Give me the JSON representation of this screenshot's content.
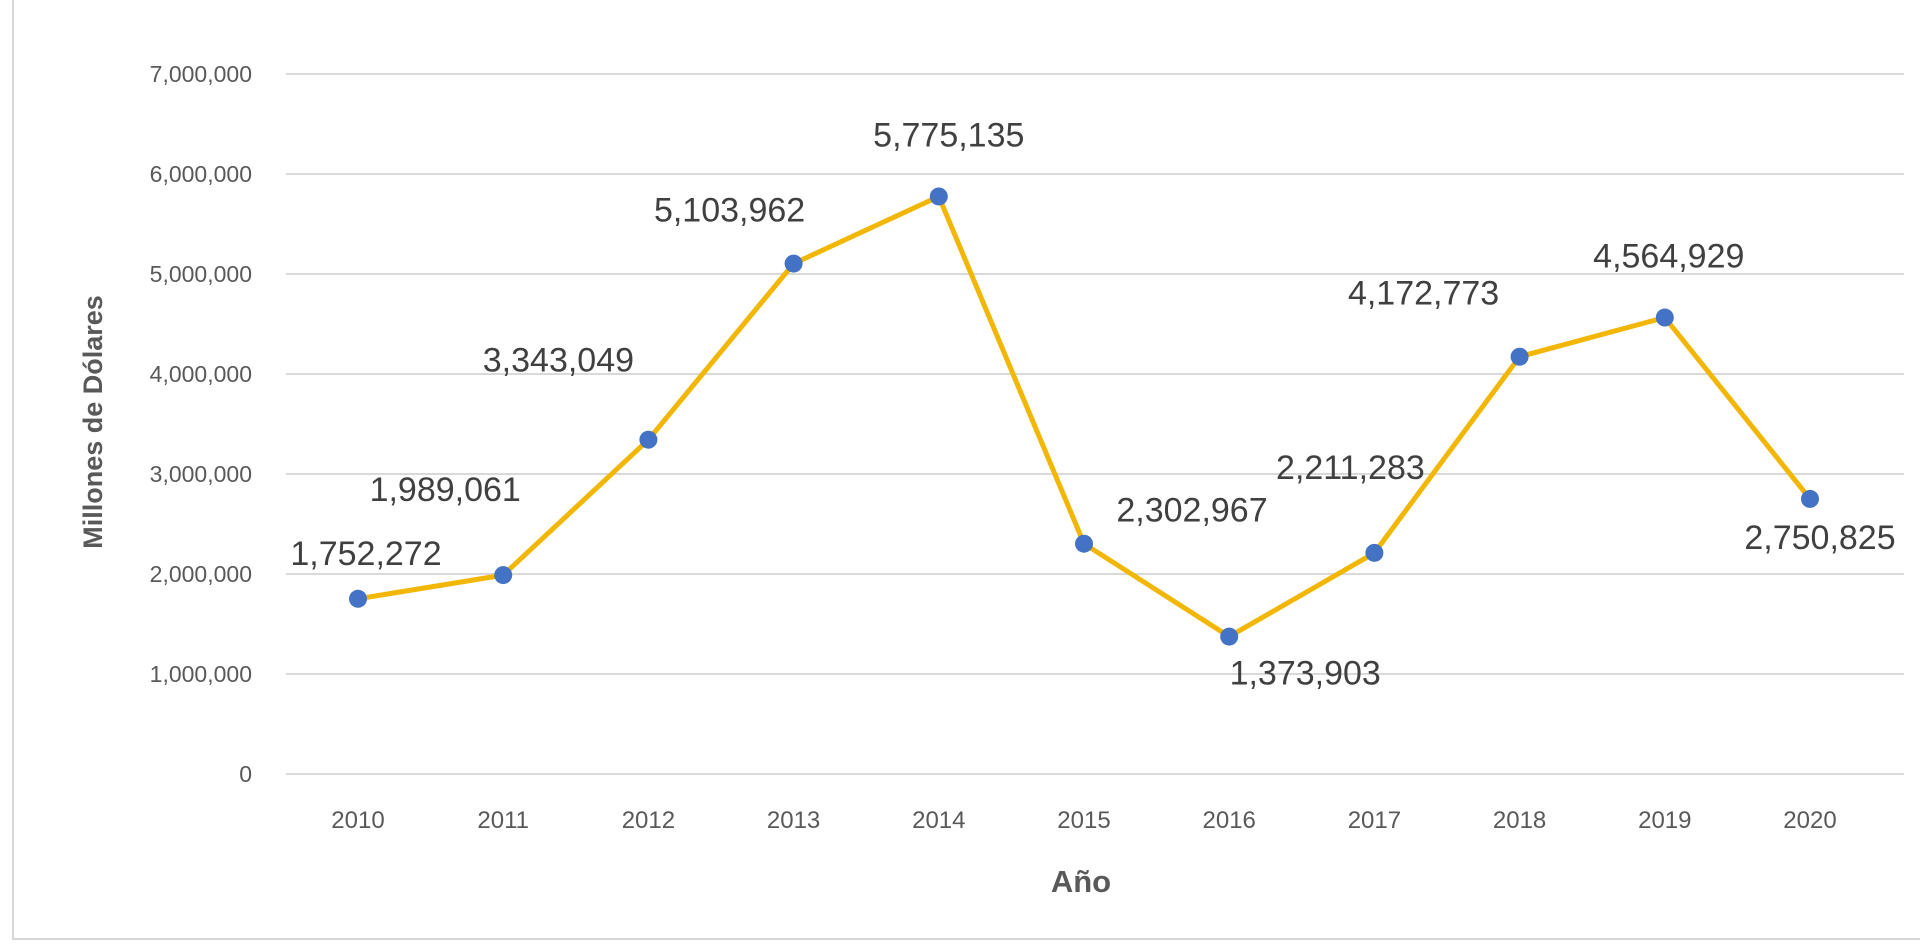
{
  "chart_data": {
    "type": "line",
    "title": "",
    "xlabel": "Año",
    "ylabel": "Millones de Dólares",
    "categories": [
      "2010",
      "2011",
      "2012",
      "2013",
      "2014",
      "2015",
      "2016",
      "2017",
      "2018",
      "2019",
      "2020"
    ],
    "series": [
      {
        "values": [
          1752272,
          1989061,
          3343049,
          5103962,
          5775135,
          2302967,
          1373903,
          2211283,
          4172773,
          4564929,
          2750825
        ],
        "data_labels": [
          "1,752,272",
          "1,989,061",
          "3,343,049",
          "5,103,962",
          "5,775,135",
          "2,302,967",
          "1,373,903",
          "2,211,283",
          "4,172,773",
          "4,564,929",
          "2,750,825"
        ],
        "line_color": "#f2b705",
        "marker_color": "#4472c4"
      }
    ],
    "ylim": [
      0,
      7000000
    ],
    "y_ticks": [
      0,
      1000000,
      2000000,
      3000000,
      4000000,
      5000000,
      6000000,
      7000000
    ],
    "y_tick_labels": [
      "0",
      "1,000,000",
      "2,000,000",
      "3,000,000",
      "4,000,000",
      "5,000,000",
      "6,000,000",
      "7,000,000"
    ],
    "grid": true,
    "legend": "none"
  }
}
